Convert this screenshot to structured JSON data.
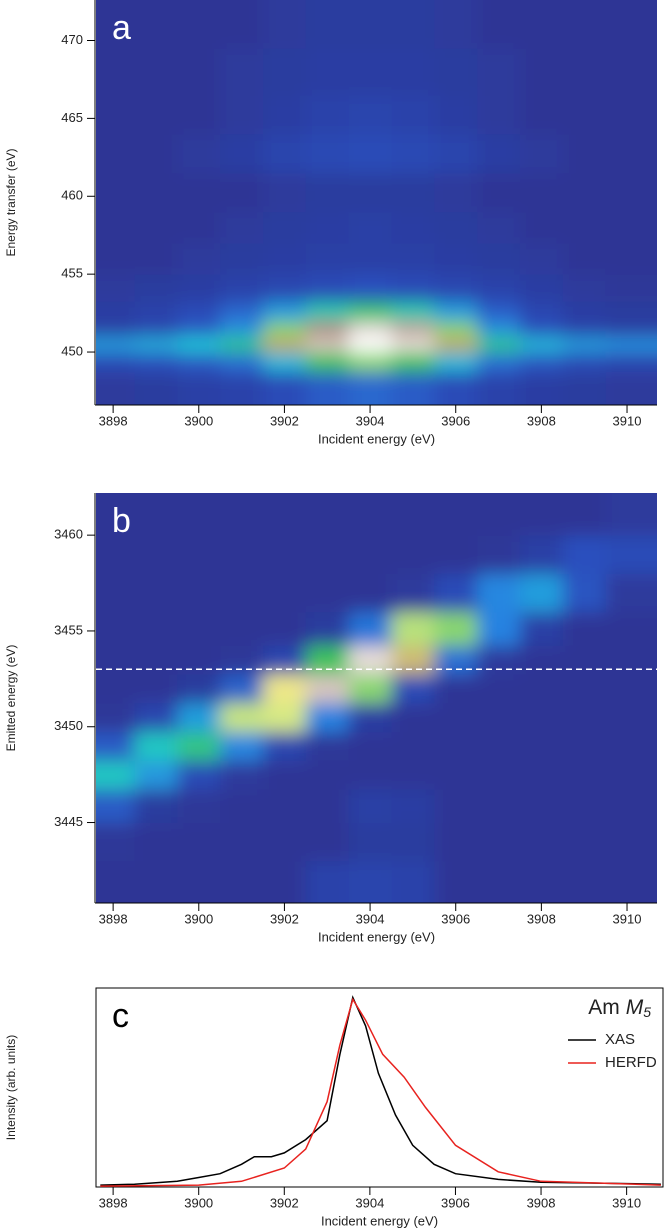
{
  "chart_data": [
    {
      "type": "heatmap",
      "panel_label": "a",
      "x_label": "Incident energy (eV)",
      "y_label": "Energy transfer (eV)",
      "xlim": [
        3897.6,
        3910.7
      ],
      "xticks": [
        3898,
        3900,
        3902,
        3904,
        3906,
        3908,
        3910
      ],
      "ylim": [
        446.6,
        472.6
      ],
      "yticks": [
        450,
        455,
        460,
        465,
        470
      ],
      "x": [
        3898,
        3899,
        3900,
        3901,
        3902,
        3903,
        3904,
        3905,
        3906,
        3907,
        3908,
        3909,
        3910
      ],
      "y": [
        448,
        449.5,
        450.5,
        451.5,
        452.5,
        454,
        456,
        458,
        460,
        463,
        465,
        468,
        471
      ],
      "z": [
        [
          0.02,
          0.03,
          0.05,
          0.06,
          0.1,
          0.15,
          0.18,
          0.15,
          0.1,
          0.06,
          0.04,
          0.03,
          0.02
        ],
        [
          0.1,
          0.12,
          0.15,
          0.2,
          0.35,
          0.5,
          0.55,
          0.5,
          0.35,
          0.2,
          0.14,
          0.1,
          0.08
        ],
        [
          0.3,
          0.33,
          0.38,
          0.45,
          0.7,
          0.92,
          1.0,
          0.95,
          0.7,
          0.45,
          0.35,
          0.3,
          0.28
        ],
        [
          0.05,
          0.08,
          0.15,
          0.28,
          0.55,
          0.85,
          0.95,
          0.88,
          0.55,
          0.28,
          0.12,
          0.06,
          0.04
        ],
        [
          0.04,
          0.06,
          0.1,
          0.18,
          0.3,
          0.42,
          0.48,
          0.42,
          0.3,
          0.16,
          0.08,
          0.04,
          0.03
        ],
        [
          0.02,
          0.03,
          0.04,
          0.06,
          0.08,
          0.1,
          0.12,
          0.1,
          0.08,
          0.06,
          0.04,
          0.02,
          0.01
        ],
        [
          0,
          0,
          0.02,
          0.03,
          0.04,
          0.05,
          0.05,
          0.05,
          0.04,
          0.03,
          0.02,
          0,
          0
        ],
        [
          0,
          0,
          0,
          0.02,
          0.03,
          0.04,
          0.05,
          0.04,
          0.03,
          0.02,
          0,
          0,
          0
        ],
        [
          0,
          0,
          0,
          0,
          0.02,
          0.03,
          0.03,
          0.03,
          0.02,
          0,
          0,
          0,
          0
        ],
        [
          0,
          0,
          0.02,
          0.04,
          0.07,
          0.09,
          0.1,
          0.09,
          0.07,
          0.04,
          0.02,
          0,
          0
        ],
        [
          0,
          0,
          0,
          0.02,
          0.04,
          0.06,
          0.07,
          0.06,
          0.04,
          0.02,
          0,
          0,
          0
        ],
        [
          0,
          0,
          0,
          0.02,
          0.03,
          0.04,
          0.04,
          0.04,
          0.03,
          0.02,
          0,
          0,
          0
        ],
        [
          0,
          0,
          0,
          0,
          0.02,
          0.03,
          0.03,
          0.03,
          0.02,
          0,
          0,
          0,
          0
        ]
      ]
    },
    {
      "type": "heatmap",
      "panel_label": "b",
      "x_label": "Incident energy (eV)",
      "y_label": "Emitted energy (eV)",
      "xlim": [
        3897.6,
        3910.7
      ],
      "xticks": [
        3898,
        3900,
        3902,
        3904,
        3906,
        3908,
        3910
      ],
      "ylim": [
        3440.8,
        3462.2
      ],
      "yticks": [
        3445,
        3450,
        3455,
        3460
      ],
      "hline": 3453,
      "x": [
        3898,
        3899,
        3900,
        3901,
        3902,
        3903,
        3904,
        3905,
        3906,
        3907,
        3908,
        3909,
        3910
      ],
      "y": [
        3442,
        3444,
        3446,
        3447.5,
        3449,
        3450.5,
        3452,
        3453.5,
        3455,
        3457,
        3459,
        3461
      ],
      "z": [
        [
          0,
          0,
          0,
          0,
          0,
          0.06,
          0.07,
          0.06,
          0,
          0,
          0,
          0,
          0
        ],
        [
          0.01,
          0,
          0,
          0,
          0,
          0,
          0.03,
          0.03,
          0,
          0,
          0,
          0,
          0
        ],
        [
          0.15,
          0.03,
          0.01,
          0,
          0,
          0,
          0.05,
          0.04,
          0,
          0,
          0,
          0,
          0
        ],
        [
          0.4,
          0.29,
          0.1,
          0.02,
          0,
          0,
          0,
          0,
          0,
          0,
          0,
          0,
          0
        ],
        [
          0.15,
          0.4,
          0.46,
          0.26,
          0.08,
          0.01,
          0,
          0,
          0,
          0,
          0,
          0,
          0
        ],
        [
          0.01,
          0.08,
          0.3,
          0.59,
          0.6,
          0.25,
          0.04,
          0,
          0,
          0,
          0,
          0,
          0
        ],
        [
          0,
          0,
          0.03,
          0.17,
          0.63,
          0.92,
          0.55,
          0.1,
          0,
          0,
          0,
          0,
          0
        ],
        [
          0,
          0,
          0,
          0.01,
          0.08,
          0.5,
          0.95,
          0.68,
          0.2,
          0.02,
          0,
          0,
          0
        ],
        [
          0,
          0,
          0,
          0,
          0,
          0.03,
          0.22,
          0.58,
          0.55,
          0.25,
          0.05,
          0,
          0
        ],
        [
          0,
          0,
          0,
          0,
          0,
          0,
          0,
          0.02,
          0.1,
          0.26,
          0.3,
          0.13,
          0.02
        ],
        [
          0,
          0,
          0,
          0,
          0,
          0,
          0,
          0,
          0,
          0.01,
          0.05,
          0.12,
          0.1
        ],
        [
          0,
          0,
          0,
          0,
          0,
          0,
          0,
          0,
          0,
          0,
          0,
          0,
          0.02
        ]
      ]
    },
    {
      "type": "line",
      "panel_label": "c",
      "x_label": "Incident energy (eV)",
      "y_label": "Intensity (arb. units)",
      "annotation": {
        "text": "Am",
        "symbol": "M",
        "subscript": "5"
      },
      "xlim": [
        3897.6,
        3910.85
      ],
      "xticks": [
        3898,
        3900,
        3902,
        3904,
        3906,
        3908,
        3910
      ],
      "ylim": [
        0,
        1.05
      ],
      "series": [
        {
          "name": "XAS",
          "color": "#000000",
          "x": [
            3897.7,
            3898.5,
            3899.5,
            3900,
            3900.5,
            3901,
            3901.3,
            3901.7,
            3902,
            3902.5,
            3903,
            3903.3,
            3903.6,
            3903.9,
            3904.2,
            3904.6,
            3905,
            3905.5,
            3906,
            3907,
            3908,
            3910.8
          ],
          "values": [
            0.01,
            0.015,
            0.03,
            0.05,
            0.07,
            0.12,
            0.16,
            0.16,
            0.18,
            0.25,
            0.35,
            0.7,
            1.0,
            0.85,
            0.6,
            0.38,
            0.22,
            0.12,
            0.07,
            0.04,
            0.025,
            0.015
          ]
        },
        {
          "name": "HERFD",
          "color": "#e8231f",
          "x": [
            3897.7,
            3900,
            3901,
            3902,
            3902.5,
            3903,
            3903.3,
            3903.6,
            3903.9,
            3904.3,
            3904.8,
            3905.3,
            3906,
            3907,
            3908,
            3910.8
          ],
          "values": [
            0.005,
            0.01,
            0.03,
            0.1,
            0.2,
            0.45,
            0.75,
            0.99,
            0.88,
            0.7,
            0.58,
            0.42,
            0.22,
            0.08,
            0.03,
            0.01
          ]
        }
      ]
    }
  ]
}
